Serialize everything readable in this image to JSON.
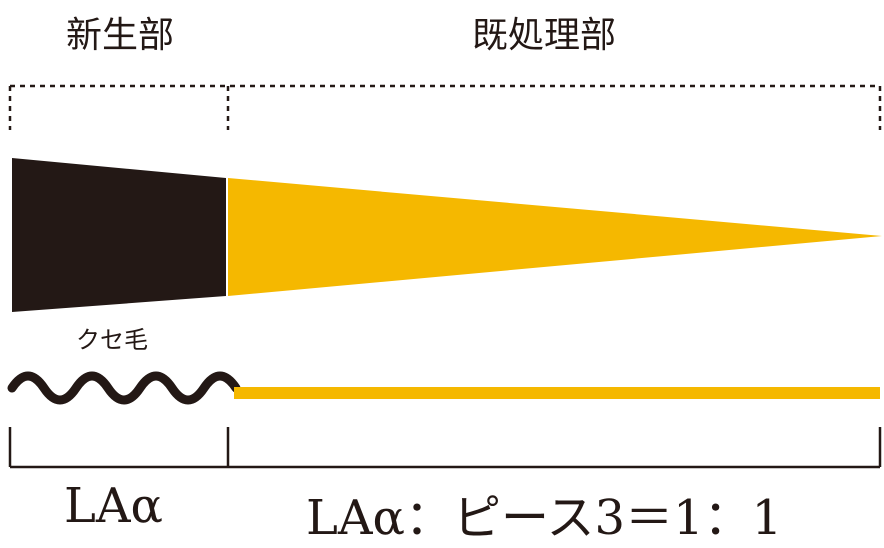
{
  "labels": {
    "new_growth": "新生部",
    "processed": "既処理部",
    "frizz": "クセ毛"
  },
  "formulas": {
    "left": "LAα",
    "right": "LAα：ピース3＝1：1"
  },
  "colors": {
    "dark": "#231815",
    "yellow": "#f5b800"
  }
}
